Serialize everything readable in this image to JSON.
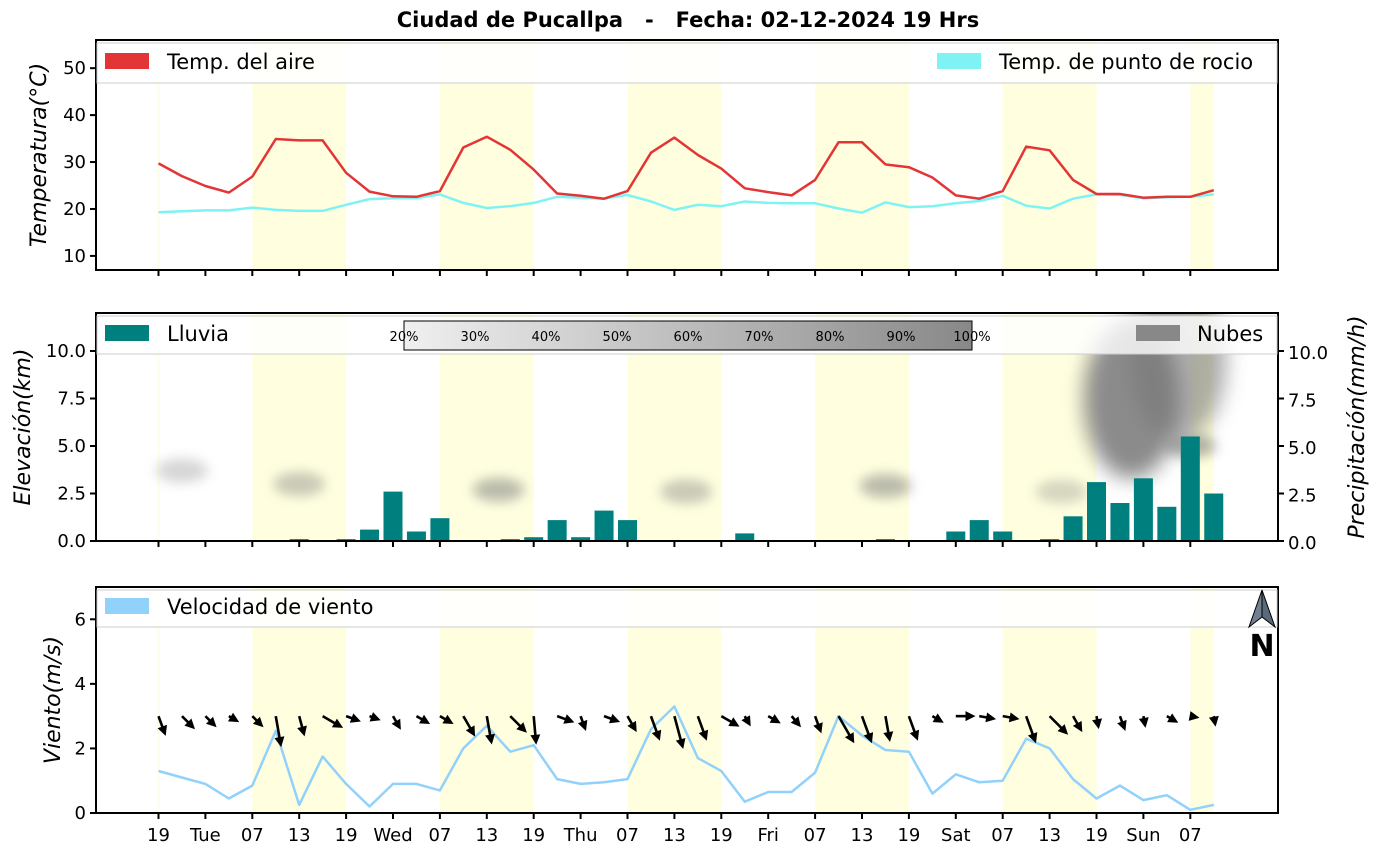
{
  "title": "Ciudad de Pucallpa   -   Fecha: 02-12-2024 19 Hrs",
  "x_tick_labels": [
    "19",
    "Tue",
    "07",
    "13",
    "19",
    "Wed",
    "07",
    "13",
    "19",
    "Thu",
    "07",
    "13",
    "19",
    "Fri",
    "07",
    "13",
    "19",
    "Sat",
    "07",
    "13",
    "19",
    "Sun",
    "07"
  ],
  "colors": {
    "air": "#e33535",
    "dew": "#7ff3f3",
    "rain": "#007f7f",
    "clouds": "#888888",
    "wind": "#92d1fb",
    "daylight": "#ffffe0"
  },
  "chart_data": [
    {
      "type": "line",
      "name": "temperature",
      "ylabel": "Temperatura(°C)",
      "ylim": [
        7,
        56
      ],
      "yticks": [
        "10",
        "20",
        "30",
        "40",
        "50"
      ],
      "legend": {
        "air": "Temp. del aire",
        "dew": "Temp. de punto de rocio"
      },
      "series": [
        {
          "name": "Temp. del aire",
          "values": [
            29.7,
            27,
            24.9,
            23.5,
            26.9,
            34.9,
            34.6,
            34.6,
            27.7,
            23.7,
            22.7,
            22.6,
            23.8,
            33.1,
            35.4,
            32.6,
            28.4,
            23.3,
            22.8,
            22.2,
            23.8,
            32,
            35.2,
            31.5,
            28.6,
            24.4,
            23.6,
            22.9,
            26.2,
            34.2,
            34.2,
            29.5,
            28.9,
            26.7,
            22.9,
            22.2,
            23.8,
            33.3,
            32.5,
            26.2,
            23.2,
            23.2,
            22.4,
            22.6,
            22.6,
            24
          ]
        },
        {
          "name": "Temp. de punto de rocio",
          "values": [
            19.3,
            19.5,
            19.7,
            19.7,
            20.3,
            19.8,
            19.6,
            19.6,
            20.9,
            22.1,
            22.3,
            22.3,
            23.1,
            21.3,
            20.2,
            20.6,
            21.3,
            22.6,
            22.4,
            22.2,
            23,
            21.6,
            19.8,
            20.9,
            20.6,
            21.6,
            21.3,
            21.2,
            21.2,
            20.1,
            19.2,
            21.4,
            20.4,
            20.6,
            21.2,
            21.7,
            22.8,
            20.7,
            20.1,
            22.2,
            23.1,
            23,
            22.3,
            22.5,
            22.6,
            23.1
          ]
        }
      ]
    },
    {
      "type": "bar",
      "name": "precipitation",
      "ylabel": "Elevación(km)",
      "ylabel_right": "Precipitación(mm/h)",
      "ylim": [
        0,
        12
      ],
      "yticks": [
        "0.0",
        "2.5",
        "5.0",
        "7.5",
        "10.0"
      ],
      "legend": {
        "rain": "Lluvia",
        "clouds": "Nubes"
      },
      "cloud_scale": [
        "20%",
        "30%",
        "40%",
        "50%",
        "60%",
        "70%",
        "80%",
        "90%",
        "100%"
      ],
      "values": [
        0,
        0,
        0,
        0,
        0,
        0,
        0.1,
        0,
        0.1,
        0.6,
        2.6,
        0.5,
        1.2,
        0,
        0,
        0.1,
        0.2,
        1.1,
        0.2,
        1.6,
        1.1,
        0,
        0,
        0,
        0,
        0.4,
        0,
        0,
        0,
        0,
        0,
        0.1,
        0,
        0,
        0.5,
        1.1,
        0.5,
        0,
        0.1,
        1.3,
        3.1,
        2,
        3.3,
        1.8,
        5.5,
        2.5
      ],
      "cloud_clusters": [
        {
          "time_index": 1,
          "elev_km": 3.7,
          "intensity": 0.3
        },
        {
          "time_index": 6,
          "elev_km": 3.0,
          "intensity": 0.4
        },
        {
          "time_index": 14.5,
          "elev_km": 2.7,
          "intensity": 0.5
        },
        {
          "time_index": 22.5,
          "elev_km": 2.6,
          "intensity": 0.4
        },
        {
          "time_index": 31,
          "elev_km": 2.9,
          "intensity": 0.5
        },
        {
          "time_index": 38.5,
          "elev_km": 2.6,
          "intensity": 0.3
        },
        {
          "time_index": 41.5,
          "elev_km": 7.5,
          "intensity": 0.85
        },
        {
          "time_index": 43.5,
          "elev_km": 9.5,
          "intensity": 0.6
        },
        {
          "time_index": 44,
          "elev_km": 5,
          "intensity": 0.55
        }
      ]
    },
    {
      "type": "line",
      "name": "wind",
      "ylabel": "Viento(m/s)",
      "ylim": [
        0,
        7
      ],
      "yticks": [
        "0",
        "2",
        "4",
        "6"
      ],
      "legend": {
        "wind": "Velocidad de viento"
      },
      "north_label": "N",
      "values": [
        1.3,
        1.1,
        0.9,
        0.45,
        0.85,
        2.55,
        0.25,
        1.75,
        0.9,
        0.2,
        0.9,
        0.9,
        0.7,
        2,
        2.7,
        1.9,
        2.1,
        1.05,
        0.9,
        0.95,
        1.05,
        2.6,
        3.3,
        1.7,
        1.3,
        0.35,
        0.65,
        0.65,
        1.25,
        3,
        2.4,
        1.95,
        1.9,
        0.6,
        1.2,
        0.95,
        1,
        2.3,
        2,
        1.05,
        0.45,
        0.85,
        0.4,
        0.55,
        0.1,
        0.25
      ],
      "wind_dir_deg": [
        340,
        315,
        315,
        300,
        315,
        350,
        345,
        300,
        290,
        290,
        330,
        300,
        300,
        330,
        350,
        315,
        355,
        290,
        340,
        290,
        330,
        340,
        345,
        340,
        300,
        330,
        300,
        320,
        340,
        330,
        340,
        350,
        340,
        300,
        270,
        280,
        280,
        340,
        315,
        330,
        350,
        340,
        350,
        300,
        280,
        350
      ],
      "wind_len": [
        0.5,
        0.4,
        0.3,
        0.15,
        0.3,
        0.9,
        0.5,
        0.6,
        0.3,
        0.15,
        0.3,
        0.3,
        0.3,
        0.6,
        0.8,
        0.6,
        0.8,
        0.4,
        0.3,
        0.35,
        0.4,
        0.7,
        1,
        0.7,
        0.5,
        0.15,
        0.25,
        0.25,
        0.4,
        0.9,
        0.8,
        0.7,
        0.7,
        0.2,
        0.45,
        0.35,
        0.35,
        0.8,
        0.7,
        0.4,
        0.2,
        0.3,
        0.15,
        0.2,
        0.05,
        0.1
      ]
    }
  ]
}
